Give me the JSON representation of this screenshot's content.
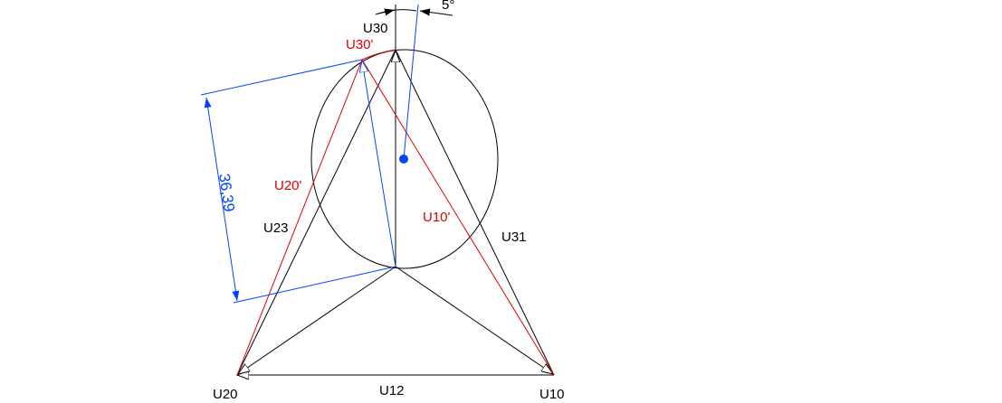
{
  "colors": {
    "primary": "#000000",
    "displaced": "#e00000",
    "dimension": "#0044ff"
  },
  "labels": {
    "u30": "U30",
    "u20": "U20",
    "u10": "U10",
    "u12": "U12",
    "u23": "U23",
    "u31": "U31",
    "u30_prime": "U30'",
    "u20_prime": "U20'",
    "u10_prime": "U10'",
    "dimension": "36,39",
    "angle": "5°"
  }
}
